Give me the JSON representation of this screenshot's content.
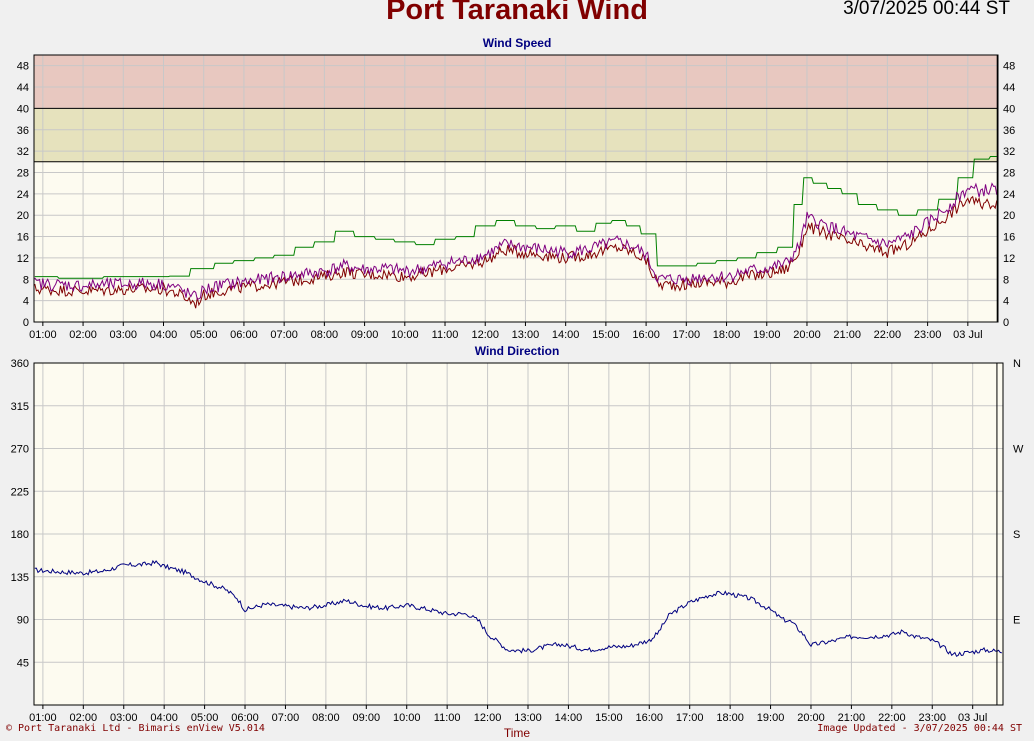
{
  "header": {
    "title": "Port Taranaki Wind",
    "timestamp": "3/07/2025 00:44 ST"
  },
  "footer": {
    "left": "© Port Taranaki Ltd - Bimaris enView V5.014",
    "right": "Image Updated - 3/07/2025 00:44 ST",
    "xlabel": "Time"
  },
  "colors": {
    "background": "#fdfbf0",
    "grid": "#c8c8c8",
    "band_red": "#e8c8c0",
    "band_yellow": "#e6e2bd",
    "gust": "#008000",
    "mean": "#800000",
    "peak": "#800080",
    "direction": "#000080"
  },
  "chart_data": [
    {
      "type": "line",
      "title": "Wind Speed",
      "x_ticks": [
        "01:00",
        "02:00",
        "03:00",
        "04:00",
        "05:00",
        "06:00",
        "07:00",
        "08:00",
        "09:00",
        "10:00",
        "11:00",
        "12:00",
        "13:00",
        "14:00",
        "15:00",
        "16:00",
        "17:00",
        "18:00",
        "19:00",
        "20:00",
        "21:00",
        "22:00",
        "23:00",
        "03 Jul"
      ],
      "xlim_hours": [
        0.78,
        24.75
      ],
      "current_time_hour": 24.73,
      "ylim": [
        0,
        50
      ],
      "y_ticks": [
        0,
        4,
        8,
        12,
        16,
        20,
        24,
        28,
        32,
        36,
        40,
        44,
        48
      ],
      "bands": [
        {
          "from": 30,
          "to": 40,
          "color_key": "band_yellow"
        },
        {
          "from": 40,
          "to": 50,
          "color_key": "band_red"
        }
      ],
      "series": [
        {
          "key": "gust",
          "x": [
            0.8,
            2,
            3,
            3.5,
            4,
            4.3,
            5,
            5.5,
            6,
            6.5,
            7,
            7.5,
            8,
            8.5,
            9,
            9.5,
            10,
            10.5,
            11,
            11.5,
            12,
            12.5,
            13,
            13.5,
            14,
            14.5,
            15,
            15.3,
            15.7,
            16,
            16.5,
            17,
            17.5,
            18,
            18.5,
            19,
            19.5,
            19.8,
            20,
            20.3,
            20.7,
            21,
            21.5,
            22,
            22.5,
            23,
            23.5,
            24,
            24.3,
            24.75
          ],
          "y": [
            8.5,
            8.2,
            8.5,
            8.5,
            8.5,
            8.6,
            10,
            11,
            11.5,
            12,
            12.5,
            14,
            15,
            17,
            16,
            15.5,
            15,
            14.5,
            15.5,
            16,
            18,
            19,
            18,
            17.5,
            18,
            17,
            18.5,
            19,
            18,
            16.5,
            10.5,
            10.5,
            11,
            11.5,
            12,
            13,
            14,
            22,
            27,
            26,
            25,
            24,
            22,
            21,
            20,
            21,
            23,
            27,
            30.5,
            31
          ]
        },
        {
          "key": "mean",
          "x": [
            0.8,
            2,
            3,
            3.5,
            4,
            4.3,
            4.8,
            5,
            5.5,
            6,
            6.5,
            7,
            7.5,
            8,
            8.5,
            9,
            9.5,
            10,
            10.5,
            11,
            11.5,
            12,
            12.5,
            13,
            13.5,
            14,
            14.5,
            15,
            15.3,
            15.7,
            16,
            16.3,
            17,
            17.5,
            18,
            18.5,
            19,
            19.5,
            19.8,
            20,
            20.3,
            20.7,
            21,
            21.5,
            22,
            22.5,
            23,
            23.5,
            24,
            24.3,
            24.75
          ],
          "y": [
            6.2,
            5.8,
            6.1,
            6.2,
            6.1,
            5.5,
            3.5,
            5.0,
            6.0,
            6.5,
            7.0,
            7.5,
            8.0,
            8.5,
            9.5,
            8.8,
            9.0,
            8.5,
            9.0,
            10.0,
            10.5,
            11.5,
            13.5,
            13.0,
            12.5,
            12.0,
            12.5,
            13.5,
            14.0,
            13.0,
            11.5,
            7.0,
            7.0,
            7.5,
            7.5,
            8.5,
            9.0,
            10.0,
            13.0,
            18.0,
            17.0,
            16.0,
            15.0,
            14.0,
            13.0,
            14.5,
            17.0,
            20.0,
            23.0,
            22.0,
            22.5
          ]
        },
        {
          "key": "peak",
          "x": [
            0.8,
            2,
            3,
            3.5,
            4,
            4.3,
            4.8,
            5,
            5.5,
            6,
            6.5,
            7,
            7.5,
            8,
            8.5,
            9,
            9.5,
            10,
            10.5,
            11,
            11.5,
            12,
            12.5,
            13,
            13.5,
            14,
            14.5,
            15,
            15.3,
            15.7,
            16,
            16.3,
            17,
            17.5,
            18,
            18.5,
            19,
            19.5,
            19.8,
            20,
            20.3,
            20.7,
            21,
            21.5,
            22,
            22.5,
            23,
            23.5,
            24,
            24.3,
            24.75
          ],
          "y": [
            7.2,
            6.8,
            7.1,
            7.2,
            7.1,
            6.5,
            4.5,
            6.0,
            7.0,
            7.5,
            8.0,
            8.5,
            9.0,
            9.5,
            10.5,
            9.8,
            10.0,
            9.5,
            10.0,
            11.0,
            11.5,
            12.5,
            14.5,
            14.0,
            13.5,
            13.0,
            13.5,
            14.5,
            15.0,
            14.0,
            12.5,
            8.0,
            8.0,
            8.5,
            8.5,
            9.5,
            10.0,
            11.0,
            14.0,
            19.5,
            18.5,
            17.5,
            16.5,
            15.5,
            14.5,
            16.0,
            18.5,
            21.5,
            25.0,
            24.5,
            25.0
          ]
        }
      ]
    },
    {
      "type": "line",
      "title": "Wind Direction",
      "x_ticks": [
        "01:00",
        "02:00",
        "03:00",
        "04:00",
        "05:00",
        "06:00",
        "07:00",
        "08:00",
        "09:00",
        "10:00",
        "11:00",
        "12:00",
        "13:00",
        "14:00",
        "15:00",
        "16:00",
        "17:00",
        "18:00",
        "19:00",
        "20:00",
        "21:00",
        "22:00",
        "23:00",
        "03 Jul"
      ],
      "xlim_hours": [
        0.78,
        24.75
      ],
      "current_time_hour": 24.6,
      "ylim": [
        0,
        360
      ],
      "y_ticks": [
        45,
        90,
        135,
        180,
        225,
        270,
        315,
        360
      ],
      "compass_ticks": [
        {
          "value": 360,
          "label": "N"
        },
        {
          "value": 270,
          "label": "W"
        },
        {
          "value": 180,
          "label": "S"
        },
        {
          "value": 90,
          "label": "E"
        }
      ],
      "series": [
        {
          "key": "direction",
          "x": [
            0.8,
            1.5,
            2,
            2.5,
            3,
            3.5,
            3.8,
            4,
            4.5,
            5,
            5.5,
            5.8,
            6,
            6.5,
            7,
            7.5,
            8,
            8.5,
            9,
            9.5,
            10,
            10.5,
            11,
            11.5,
            11.8,
            12,
            12.3,
            12.5,
            13,
            13.5,
            13.8,
            14,
            14.5,
            15,
            15.5,
            16,
            16.2,
            16.5,
            17,
            17.5,
            17.8,
            18,
            18.5,
            19,
            19.3,
            19.5,
            19.8,
            20,
            20.5,
            21,
            21.5,
            22,
            22.3,
            22.5,
            23,
            23.3,
            23.5,
            24,
            24.3,
            24.75
          ],
          "y": [
            142,
            140,
            139,
            141,
            147,
            148,
            150,
            146,
            140,
            130,
            122,
            113,
            100,
            106,
            104,
            102,
            105,
            110,
            104,
            102,
            105,
            101,
            96,
            96,
            88,
            75,
            65,
            58,
            57,
            62,
            64,
            62,
            58,
            61,
            62,
            68,
            75,
            95,
            108,
            116,
            118,
            117,
            112,
            100,
            90,
            88,
            75,
            63,
            67,
            72,
            72,
            74,
            78,
            73,
            68,
            60,
            53,
            56,
            58,
            56
          ]
        }
      ]
    }
  ]
}
